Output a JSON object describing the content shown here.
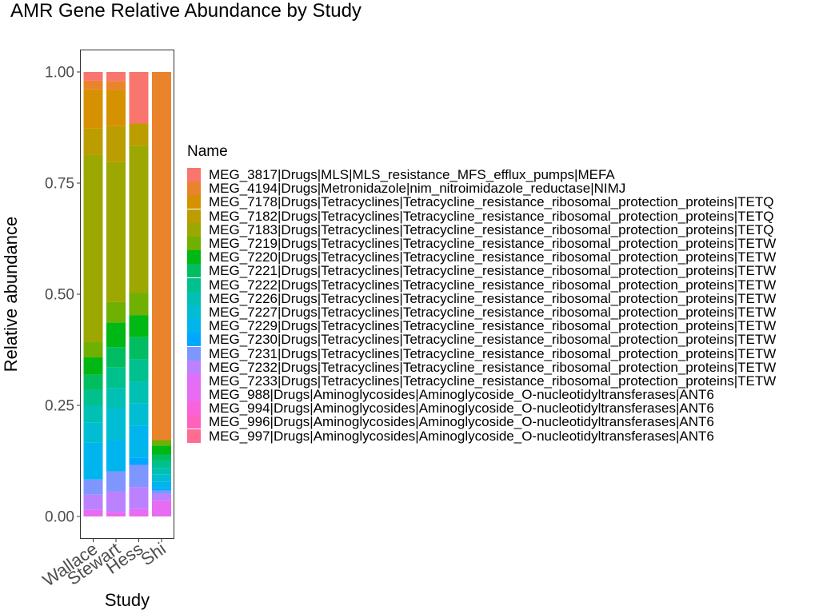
{
  "chart_data": {
    "type": "bar",
    "stacked": true,
    "title": "AMR Gene Relative Abundance by Study",
    "xlabel": "Study",
    "ylabel": "Relative abundance",
    "ylim": [
      0,
      1
    ],
    "yticks": [
      "0.00",
      "0.25",
      "0.50",
      "0.75",
      "1.00"
    ],
    "categories": [
      "Wallace",
      "Stewart",
      "Hess",
      "Shi"
    ],
    "legend_title": "Name",
    "legend_position": "right",
    "grid": false,
    "series": [
      {
        "name": "MEG_3817|Drugs|MLS|MLS_resistance_MFS_efflux_pumps|MEFA",
        "color": "#F8766D",
        "values": [
          0.02,
          0.02,
          0.105,
          0.0
        ]
      },
      {
        "name": "MEG_4194|Drugs|Metronidazole|nim_nitroimidazole_reductase|NIMJ",
        "color": "#E9842C",
        "values": [
          0.02,
          0.02,
          0.0,
          0.82
        ]
      },
      {
        "name": "MEG_7178|Drugs|Tetracyclines|Tetracycline_resistance_ribosomal_protection_proteins|TETQ",
        "color": "#D69100",
        "values": [
          0.09,
          0.08,
          0.0,
          0.0
        ]
      },
      {
        "name": "MEG_7182|Drugs|Tetracyclines|Tetracycline_resistance_ribosomal_protection_proteins|TETQ",
        "color": "#BC9D00",
        "values": [
          0.06,
          0.08,
          0.045,
          0.0
        ]
      },
      {
        "name": "MEG_7183|Drugs|Tetracyclines|Tetracycline_resistance_ribosomal_protection_proteins|TETQ",
        "color": "#9CA700",
        "values": [
          0.43,
          0.31,
          0.3,
          0.0
        ]
      },
      {
        "name": "MEG_7219|Drugs|Tetracyclines|Tetracycline_resistance_ribosomal_protection_proteins|TETW",
        "color": "#6FB000",
        "values": [
          0.035,
          0.045,
          0.045,
          0.012
        ]
      },
      {
        "name": "MEG_7220|Drugs|Tetracyclines|Tetracycline_resistance_ribosomal_protection_proteins|TETW",
        "color": "#00B813",
        "values": [
          0.04,
          0.055,
          0.045,
          0.02
        ]
      },
      {
        "name": "MEG_7221|Drugs|Tetracyclines|Tetracycline_resistance_ribosomal_protection_proteins|TETW",
        "color": "#00BD61",
        "values": [
          0.035,
          0.045,
          0.045,
          0.015
        ]
      },
      {
        "name": "MEG_7222|Drugs|Tetracyclines|Tetracycline_resistance_ribosomal_protection_proteins|TETW",
        "color": "#00C08E",
        "values": [
          0.035,
          0.045,
          0.045,
          0.015
        ]
      },
      {
        "name": "MEG_7226|Drugs|Tetracyclines|Tetracycline_resistance_ribosomal_protection_proteins|TETW",
        "color": "#00C0B4",
        "values": [
          0.04,
          0.045,
          0.045,
          0.015
        ]
      },
      {
        "name": "MEG_7227|Drugs|Tetracyclines|Tetracycline_resistance_ribosomal_protection_proteins|TETW",
        "color": "#00BDD4",
        "values": [
          0.045,
          0.07,
          0.045,
          0.015
        ]
      },
      {
        "name": "MEG_7229|Drugs|Tetracyclines|Tetracycline_resistance_ribosomal_protection_proteins|TETW",
        "color": "#00B5EE",
        "values": [
          0.085,
          0.07,
          0.065,
          0.015
        ]
      },
      {
        "name": "MEG_7230|Drugs|Tetracyclines|Tetracycline_resistance_ribosomal_protection_proteins|TETW",
        "color": "#00A7FF",
        "values": [
          0.0,
          0.0,
          0.015,
          0.005
        ]
      },
      {
        "name": "MEG_7231|Drugs|Tetracyclines|Tetracycline_resistance_ribosomal_protection_proteins|TETW",
        "color": "#7F96FF",
        "values": [
          0.035,
          0.045,
          0.045,
          0.008
        ]
      },
      {
        "name": "MEG_7232|Drugs|Tetracyclines|Tetracycline_resistance_ribosomal_protection_proteins|TETW",
        "color": "#BC81FF",
        "values": [
          0.035,
          0.045,
          0.045,
          0.015
        ]
      },
      {
        "name": "MEG_7233|Drugs|Tetracyclines|Tetracycline_resistance_ribosomal_protection_proteins|TETW",
        "color": "#E26EF7",
        "values": [
          0.0,
          0.0,
          0.0,
          0.0
        ]
      },
      {
        "name": "MEG_988|Drugs|Aminoglycosides|Aminoglycoside_O-nucleotidyltransferases|ANT6",
        "color": "#E76BF3",
        "values": [
          0.015,
          0.01,
          0.015,
          0.035
        ]
      },
      {
        "name": "MEG_994|Drugs|Aminoglycosides|Aminoglycoside_O-nucleotidyltransferases|ANT6",
        "color": "#FA62DB",
        "values": [
          0.0,
          0.0,
          0.0,
          0.0
        ]
      },
      {
        "name": "MEG_996|Drugs|Aminoglycosides|Aminoglycoside_O-nucleotidyltransferases|ANT6",
        "color": "#FF62BC",
        "values": [
          0.0,
          0.0,
          0.0,
          0.0
        ]
      },
      {
        "name": "MEG_997|Drugs|Aminoglycosides|Aminoglycoside_O-nucleotidyltransferases|ANT6",
        "color": "#FF6C91",
        "values": [
          0.0,
          0.0,
          0.0,
          0.0
        ]
      }
    ]
  }
}
